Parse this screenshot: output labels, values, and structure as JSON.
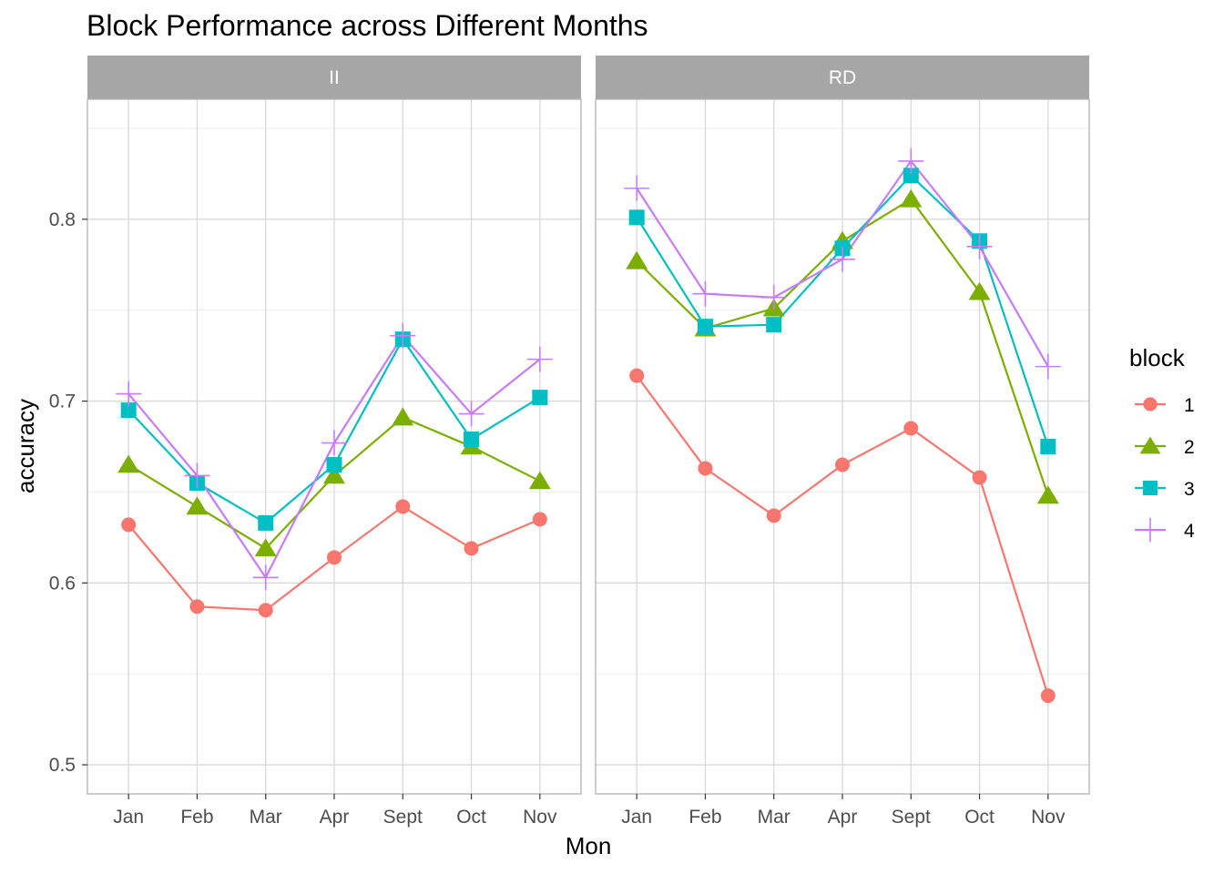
{
  "chart_data": {
    "type": "line",
    "title": "Block Performance across Different Months",
    "xlabel": "Mon",
    "ylabel": "accuracy",
    "categories": [
      "Jan",
      "Feb",
      "Mar",
      "Apr",
      "Sept",
      "Oct",
      "Nov"
    ],
    "ylim": [
      0.484,
      0.866
    ],
    "yticks": [
      0.5,
      0.6,
      0.7,
      0.8
    ],
    "ytick_labels": [
      "0.5",
      "0.6",
      "0.7",
      "0.8"
    ],
    "grid": true,
    "legend": {
      "title": "block",
      "position": "right",
      "entries": [
        "1",
        "2",
        "3",
        "4"
      ]
    },
    "panels": [
      {
        "label": "II",
        "series": [
          {
            "name": "1",
            "values": [
              0.632,
              0.587,
              0.585,
              0.614,
              0.642,
              0.619,
              0.635
            ]
          },
          {
            "name": "2",
            "values": [
              0.665,
              0.642,
              0.619,
              0.659,
              0.691,
              0.675,
              0.656
            ]
          },
          {
            "name": "3",
            "values": [
              0.695,
              0.655,
              0.633,
              0.665,
              0.734,
              0.679,
              0.702
            ]
          },
          {
            "name": "4",
            "values": [
              0.704,
              0.659,
              0.603,
              0.677,
              0.736,
              0.693,
              0.723
            ]
          }
        ]
      },
      {
        "label": "RD",
        "series": [
          {
            "name": "1",
            "values": [
              0.714,
              0.663,
              0.637,
              0.665,
              0.685,
              0.658,
              0.538
            ]
          },
          {
            "name": "2",
            "values": [
              0.777,
              0.74,
              0.751,
              0.788,
              0.811,
              0.76,
              0.648
            ]
          },
          {
            "name": "3",
            "values": [
              0.801,
              0.741,
              0.742,
              0.784,
              0.824,
              0.788,
              0.675
            ]
          },
          {
            "name": "4",
            "values": [
              0.817,
              0.759,
              0.757,
              0.778,
              0.832,
              0.785,
              0.719
            ]
          }
        ]
      }
    ],
    "series_styles": [
      {
        "name": "1",
        "color": "#F8766D",
        "shape": "circle"
      },
      {
        "name": "2",
        "color": "#7CAE00",
        "shape": "triangle"
      },
      {
        "name": "3",
        "color": "#00BFC4",
        "shape": "square"
      },
      {
        "name": "4",
        "color": "#C77CFF",
        "shape": "plus"
      }
    ],
    "strip_color": "#a6a6a6",
    "grid_color": "#d9d9d9",
    "panel_border_color": "#b3b3b3"
  }
}
